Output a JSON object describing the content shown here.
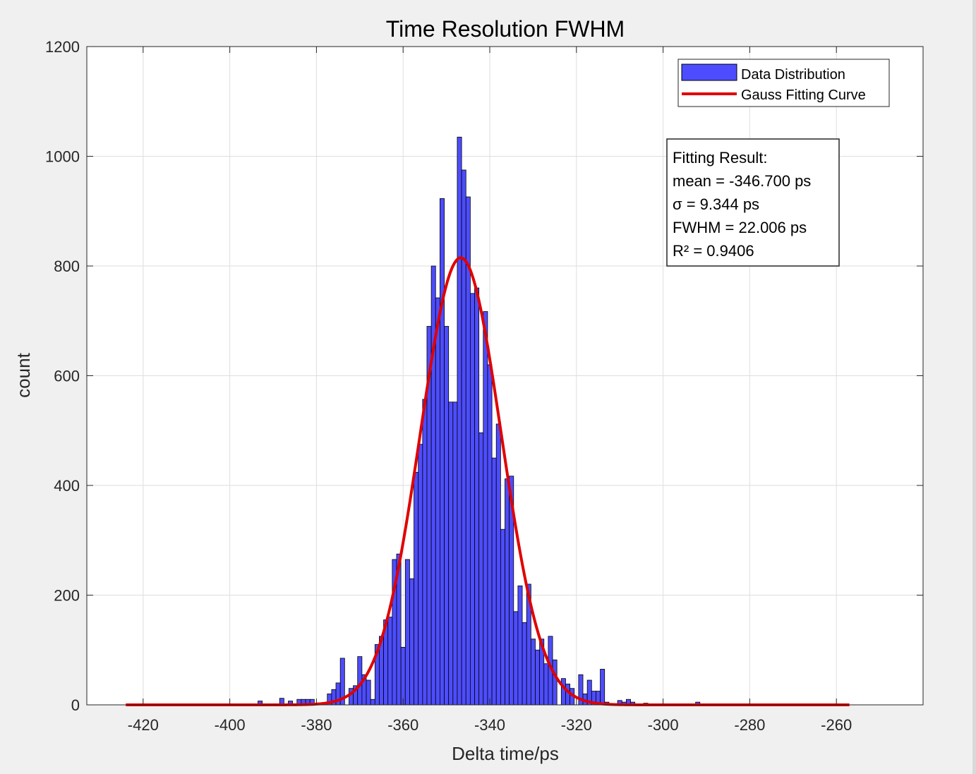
{
  "chart_data": {
    "type": "bar",
    "title": "Time Resolution FWHM",
    "xlabel": "Delta time/ps",
    "ylabel": "count",
    "xlim": [
      -433,
      -240
    ],
    "ylim": [
      0,
      1200
    ],
    "xticks": [
      -420,
      -400,
      -380,
      -360,
      -340,
      -320,
      -300,
      -280,
      -260
    ],
    "yticks": [
      0,
      200,
      400,
      600,
      800,
      1000,
      1200
    ],
    "grid": true,
    "legend_location": "top-right",
    "bin_start": -393.5,
    "bin_width": 1,
    "series": [
      {
        "name": "Data Distribution",
        "type": "histogram",
        "color": "#4d4dff",
        "edge_color": "#000000",
        "values": [
          7,
          0,
          0,
          0,
          0,
          12,
          0,
          7,
          0,
          10,
          10,
          10,
          10,
          0,
          0,
          0,
          20,
          28,
          40,
          85,
          0,
          30,
          35,
          88,
          55,
          45,
          10,
          110,
          125,
          155,
          160,
          265,
          275,
          105,
          265,
          230,
          424,
          475,
          557,
          690,
          800,
          742,
          923,
          690,
          552,
          552,
          1035,
          975,
          926,
          750,
          760,
          496,
          717,
          620,
          450,
          512,
          320,
          412,
          417,
          170,
          217,
          150,
          220,
          120,
          100,
          120,
          75,
          125,
          82,
          0,
          48,
          38,
          30,
          0,
          55,
          20,
          45,
          25,
          25,
          65,
          5,
          0,
          0,
          8,
          5,
          10,
          5,
          0,
          0,
          3,
          0,
          0,
          0,
          0,
          0,
          0,
          0,
          0,
          0,
          0,
          0,
          5
        ]
      },
      {
        "name": "Gauss Fitting Curve",
        "type": "gaussian",
        "color": "#e00000",
        "amplitude": 815,
        "mean": -346.7,
        "sigma": 9.344,
        "x_range": [
          -424,
          -257
        ]
      }
    ],
    "annotation": {
      "lines": [
        "Fitting Result:",
        "mean = -346.700 ps",
        "σ = 9.344 ps",
        "FWHM = 22.006 ps",
        "R² = 0.9406"
      ]
    }
  }
}
